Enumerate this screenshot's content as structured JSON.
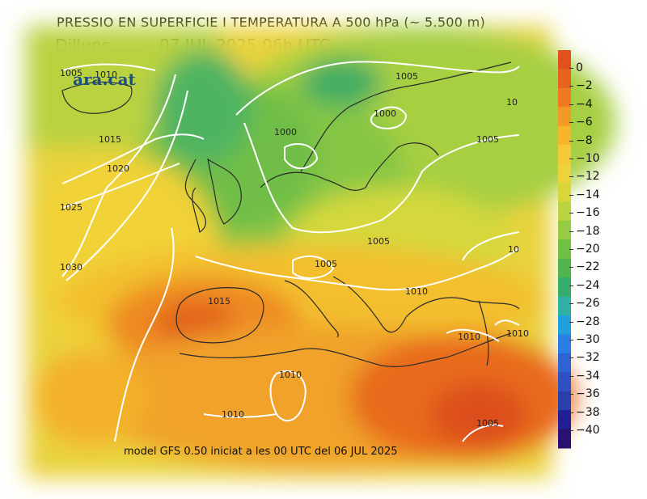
{
  "header": {
    "title": "PRESSIO EN SUPERFICIE I TEMPERATURA A 500 hPa (~ 5.500 m)",
    "day": "Dilluns",
    "datetime": "07.JUL.2025 06h UTC"
  },
  "logo": "ara.cat",
  "footer": "model GFS 0.50 iniciat a les 00 UTC del 06 JUL 2025",
  "legend": {
    "labels": [
      "0",
      "−2",
      "−4",
      "−6",
      "−8",
      "−10",
      "−12",
      "−14",
      "−16",
      "−18",
      "−20",
      "−22",
      "−24",
      "−26",
      "−28",
      "−30",
      "−32",
      "−34",
      "−36",
      "−38",
      "−40"
    ],
    "colors": [
      "#e0511e",
      "#e6641d",
      "#ee7b22",
      "#f39a26",
      "#f6b52d",
      "#f5c935",
      "#eed23a",
      "#d9d63a",
      "#b8d43e",
      "#96cc43",
      "#6fc043",
      "#4fb54c",
      "#37ad6c",
      "#2fb0a5",
      "#1f9fdc",
      "#2a7fe5",
      "#2e63d3",
      "#2d50c3",
      "#2840ab",
      "#221f95",
      "#2a1070"
    ]
  },
  "isobars": [
    {
      "label": "1005",
      "pos": "top-left-corner"
    },
    {
      "label": "1010",
      "pos": "top-left"
    },
    {
      "label": "1005",
      "pos": "north"
    },
    {
      "label": "1000",
      "pos": "scandinavia"
    },
    {
      "label": "1000",
      "pos": "north-sea"
    },
    {
      "label": "1005",
      "pos": "russia"
    },
    {
      "label": "1015",
      "pos": "atlantic"
    },
    {
      "label": "1020",
      "pos": "atlantic"
    },
    {
      "label": "1025",
      "pos": "west-edge"
    },
    {
      "label": "1030",
      "pos": "west-edge"
    },
    {
      "label": "1005",
      "pos": "central-europe"
    },
    {
      "label": "1005",
      "pos": "alps"
    },
    {
      "label": "1010",
      "pos": "balkans"
    },
    {
      "label": "1015",
      "pos": "iberia"
    },
    {
      "label": "1010",
      "pos": "turkey"
    },
    {
      "label": "1010",
      "pos": "east-edge"
    },
    {
      "label": "1010",
      "pos": "north-africa"
    },
    {
      "label": "1010",
      "pos": "sahara"
    },
    {
      "label": "1005",
      "pos": "egypt"
    },
    {
      "label": "10",
      "pos": "east-edge-upper"
    },
    {
      "label": "10",
      "pos": "north-east-corner"
    }
  ]
}
